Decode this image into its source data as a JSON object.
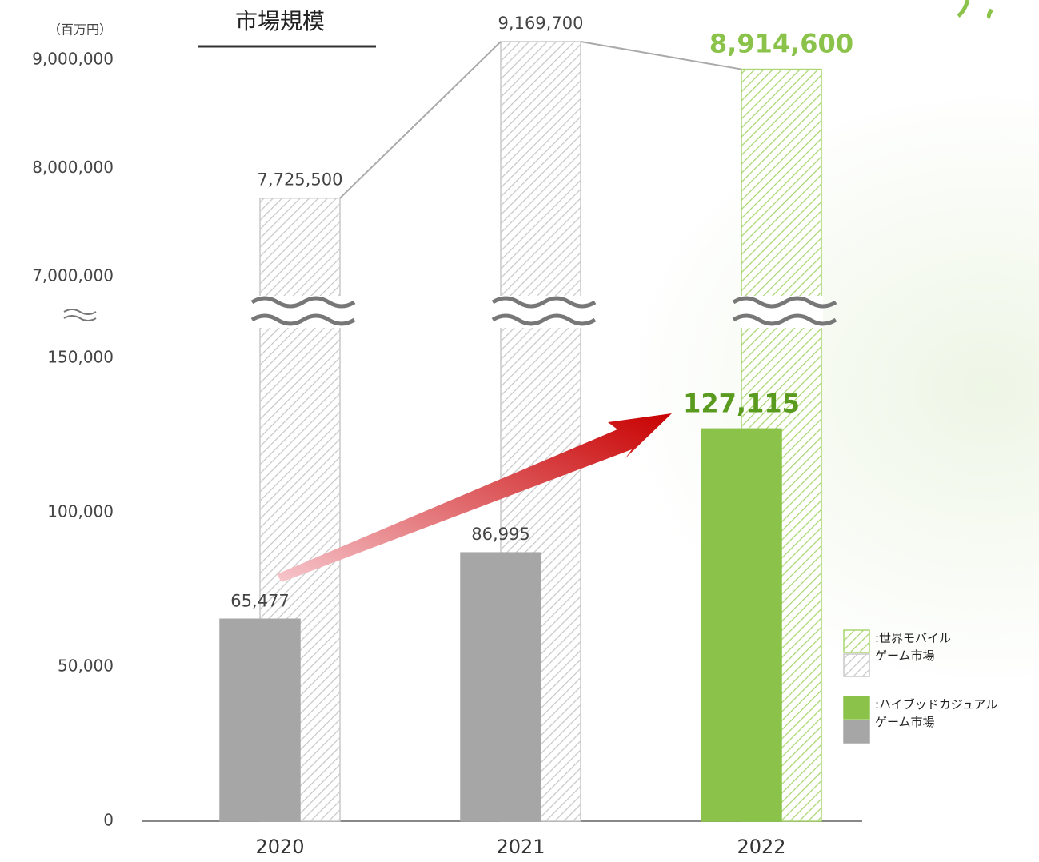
{
  "chart_data": {
    "type": "broken-bar",
    "title": "市場規模",
    "unit_label": "（百万円）",
    "categories": [
      "2020",
      "2021",
      "2022"
    ],
    "series": [
      {
        "name": ":世界モバイル\nゲーム市場",
        "axis": "y2",
        "style": "hatched",
        "color": "#c8c8c8",
        "colors": [
          "#c8c8c8",
          "#c8c8c8",
          "#a9d66f"
        ],
        "value_label_colors": [
          "#444444",
          "#444444",
          "#8bc34a"
        ],
        "values": [
          7725500,
          9169700,
          8914600
        ],
        "value_labels": [
          "7,725,500",
          "9,169,700",
          "8,914,600"
        ]
      },
      {
        "name": ":ハイブッドカジュアル\nゲーム市場",
        "style": "solid",
        "color": "#a6a6a6",
        "colors": [
          "#a6a6a6",
          "#a6a6a6",
          "#8bc34a"
        ],
        "value_label_colors": [
          "#444444",
          "#444444",
          "#5a9a1f"
        ],
        "values": [
          65477,
          86995,
          127115
        ],
        "value_labels": [
          "65,477",
          "86,995",
          "127,115"
        ]
      }
    ],
    "ylim": [
      0,
      150000
    ],
    "yticks": [
      0,
      {
        "value": 50000,
        "label": "50,000"
      },
      {
        "value": 100000,
        "label": "100,000"
      },
      {
        "value": 150000,
        "label": "150,000"
      }
    ],
    "y2lim": [
      7000000,
      9000000
    ],
    "y2ticks": [
      {
        "value": 7000000,
        "label": "7,000,000"
      },
      {
        "value": 8000000,
        "label": "8,000,000"
      },
      {
        "value": 9000000,
        "label": "9,000,000"
      }
    ]
  }
}
